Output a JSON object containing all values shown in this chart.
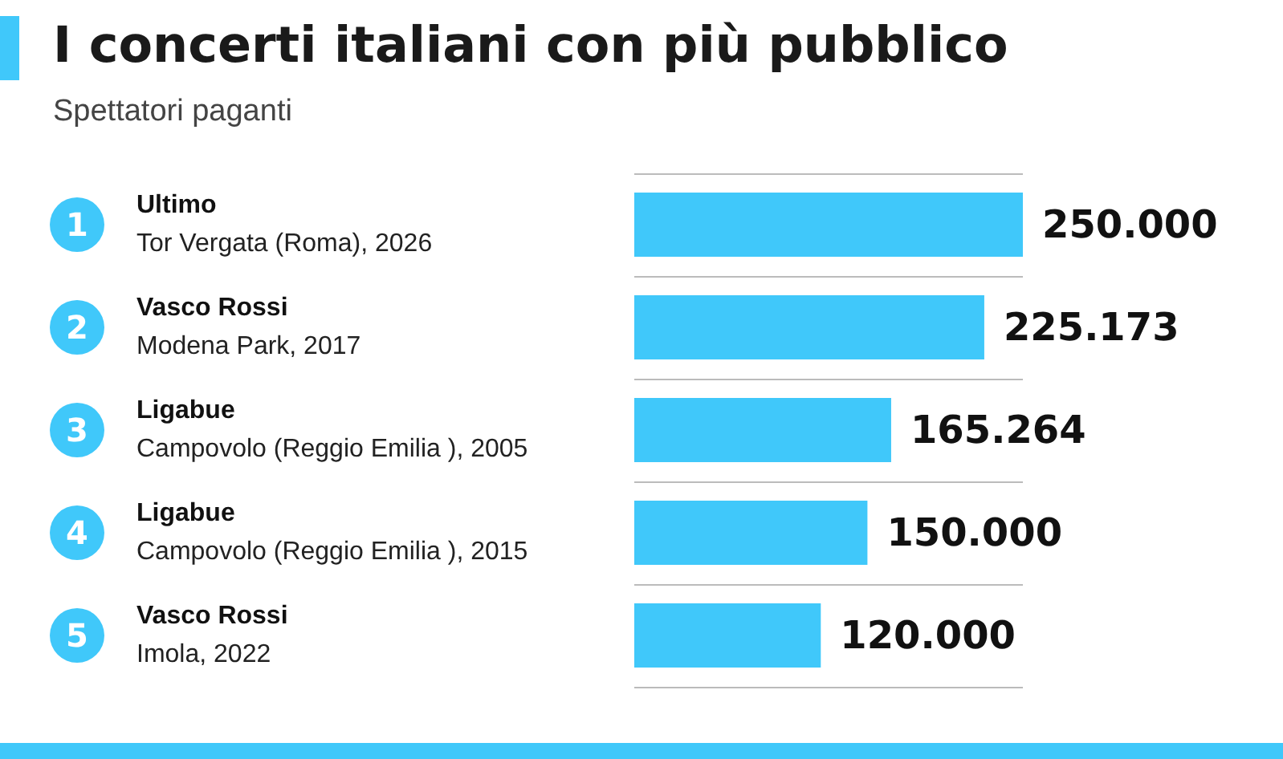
{
  "chart_data": {
    "type": "bar",
    "orientation": "horizontal",
    "title": "I concerti italiani con più pubblico",
    "subtitle": "Spettatori paganti",
    "categories": [
      "Ultimo\nTor Vergata (Roma), 2026",
      "Vasco Rossi\nModena Park, 2017",
      "Ligabue\nCampovolo (Reggio Emilia ), 2005",
      "Ligabue\nCampovolo (Reggio Emilia ), 2015",
      "Vasco Rossi\nImola, 2022"
    ],
    "values": [
      250000,
      225173,
      165264,
      150000,
      120000
    ],
    "value_labels": [
      "250.000",
      "225.173",
      "165.264",
      "150.000",
      "120.000"
    ],
    "color": "#40c8fa",
    "annotations": [
      "1",
      "2",
      "3",
      "4",
      "5"
    ],
    "grid": "y"
  }
}
